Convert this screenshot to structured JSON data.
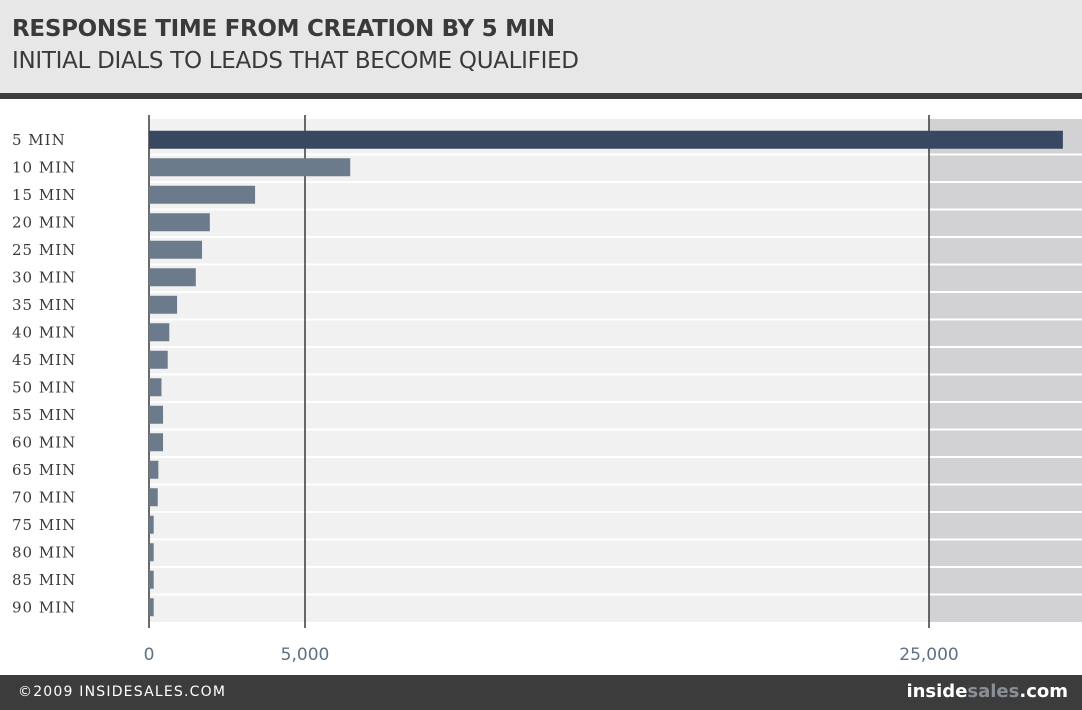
{
  "header": {
    "title": "RESPONSE TIME FROM CREATION BY 5 MIN",
    "subtitle": "INITIAL DIALS TO LEADS THAT BECOME QUALIFIED"
  },
  "footer": {
    "copyright": "©2009 INSIDESALES.COM",
    "logo_part1": "inside",
    "logo_part2": "sales",
    "logo_part3": ".com"
  },
  "chart_data": {
    "type": "bar",
    "orientation": "horizontal",
    "title": "RESPONSE TIME FROM CREATION BY 5 MIN",
    "subtitle": "INITIAL DIALS TO LEADS THAT BECOME QUALIFIED",
    "xlabel": "",
    "ylabel": "",
    "categories": [
      "5 MIN",
      "10 MIN",
      "15 MIN",
      "20 MIN",
      "25 MIN",
      "30 MIN",
      "35 MIN",
      "40 MIN",
      "45 MIN",
      "50 MIN",
      "55 MIN",
      "60 MIN",
      "65 MIN",
      "70 MIN",
      "75 MIN",
      "80 MIN",
      "85 MIN",
      "90 MIN"
    ],
    "values": [
      28500,
      6450,
      3400,
      1950,
      1700,
      1500,
      900,
      650,
      600,
      400,
      450,
      450,
      300,
      280,
      150,
      150,
      150,
      150
    ],
    "x_ticks": [
      0,
      5000,
      25000
    ],
    "x_tick_labels": [
      "0",
      "5,000",
      "25,000"
    ],
    "axis_break": "above 25,000 (shaded region)",
    "grid": true,
    "colors": {
      "highlight_bar": "#384860",
      "bar": "#6c7b8b",
      "plot_background": "#f1f1f1",
      "break_region": "#d2d2d4",
      "tick_label": "#5e7184"
    }
  }
}
